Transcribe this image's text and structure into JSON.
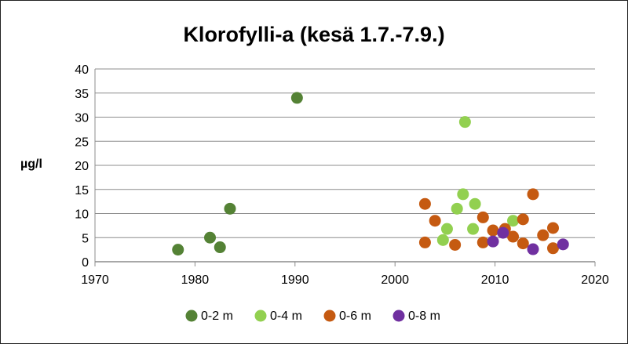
{
  "chart_data": {
    "type": "scatter",
    "title": "Klorofylli-a (kesä 1.7.-7.9.)",
    "xlabel": "",
    "ylabel": "µg/l",
    "xlim": [
      1970,
      2020
    ],
    "ylim": [
      0,
      40
    ],
    "x_ticks": [
      1970,
      1980,
      1990,
      2000,
      2010,
      2020
    ],
    "y_ticks": [
      0,
      5,
      10,
      15,
      20,
      25,
      30,
      35,
      40
    ],
    "grid": "horizontal",
    "legend_position": "bottom",
    "series": [
      {
        "name": "0-2 m",
        "color": "#548235",
        "points": [
          {
            "x": 1978.3,
            "y": 2.5
          },
          {
            "x": 1981.5,
            "y": 5.0
          },
          {
            "x": 1982.5,
            "y": 3.0
          },
          {
            "x": 1983.5,
            "y": 11.0
          },
          {
            "x": 1990.2,
            "y": 34.0
          }
        ]
      },
      {
        "name": "0-4 m",
        "color": "#92D050",
        "points": [
          {
            "x": 2004.8,
            "y": 4.5
          },
          {
            "x": 2005.2,
            "y": 6.8
          },
          {
            "x": 2006.2,
            "y": 11.0
          },
          {
            "x": 2006.8,
            "y": 14.0
          },
          {
            "x": 2007.0,
            "y": 29.0
          },
          {
            "x": 2007.8,
            "y": 6.8
          },
          {
            "x": 2008.0,
            "y": 12.0
          },
          {
            "x": 2011.8,
            "y": 8.5
          }
        ]
      },
      {
        "name": "0-6 m",
        "color": "#C55A11",
        "points": [
          {
            "x": 2003.0,
            "y": 12.0
          },
          {
            "x": 2003.0,
            "y": 4.0
          },
          {
            "x": 2004.0,
            "y": 8.5
          },
          {
            "x": 2006.0,
            "y": 3.5
          },
          {
            "x": 2008.8,
            "y": 9.2
          },
          {
            "x": 2008.8,
            "y": 4.0
          },
          {
            "x": 2009.8,
            "y": 6.5
          },
          {
            "x": 2011.0,
            "y": 6.8
          },
          {
            "x": 2011.8,
            "y": 5.2
          },
          {
            "x": 2012.8,
            "y": 3.8
          },
          {
            "x": 2012.8,
            "y": 8.8
          },
          {
            "x": 2013.8,
            "y": 14.0
          },
          {
            "x": 2014.8,
            "y": 5.5
          },
          {
            "x": 2015.8,
            "y": 7.0
          },
          {
            "x": 2015.8,
            "y": 2.8
          }
        ]
      },
      {
        "name": "0-8 m",
        "color": "#7030A0",
        "points": [
          {
            "x": 2009.8,
            "y": 4.2
          },
          {
            "x": 2010.8,
            "y": 6.0
          },
          {
            "x": 2013.8,
            "y": 2.6
          },
          {
            "x": 2016.8,
            "y": 3.6
          }
        ]
      }
    ]
  }
}
